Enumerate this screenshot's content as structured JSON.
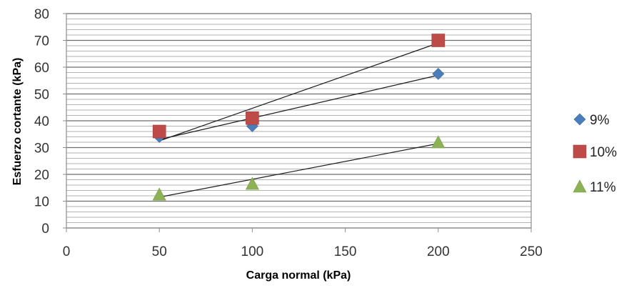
{
  "chart_data": {
    "type": "scatter",
    "title": "",
    "xlabel": "Carga normal (kPa)",
    "ylabel": "Esfuerzo cortante (kPa)",
    "xlim": [
      0,
      250
    ],
    "ylim": [
      0,
      80
    ],
    "x_ticks": [
      0,
      50,
      100,
      150,
      200,
      250
    ],
    "y_ticks": [
      0,
      10,
      20,
      30,
      40,
      50,
      60,
      70,
      80
    ],
    "minor_grid_step": 2,
    "legend_position": "right",
    "series": [
      {
        "name": "9%",
        "marker": "diamond",
        "color": "#4A7EBB",
        "points": [
          [
            50,
            34
          ],
          [
            100,
            38
          ],
          [
            200,
            57.5
          ]
        ],
        "trendline": [
          [
            50,
            33
          ],
          [
            200,
            57
          ]
        ]
      },
      {
        "name": "10%",
        "marker": "square",
        "color": "#BE4B48",
        "points": [
          [
            50,
            36
          ],
          [
            100,
            41
          ],
          [
            200,
            70
          ]
        ],
        "trendline": [
          [
            50,
            32.5
          ],
          [
            200,
            69
          ]
        ]
      },
      {
        "name": "11%",
        "marker": "triangle",
        "color": "#8DB255",
        "points": [
          [
            50,
            12.5
          ],
          [
            100,
            16.5
          ],
          [
            200,
            32
          ]
        ],
        "trendline": [
          [
            50,
            11.5
          ],
          [
            200,
            31.5
          ]
        ]
      }
    ]
  }
}
